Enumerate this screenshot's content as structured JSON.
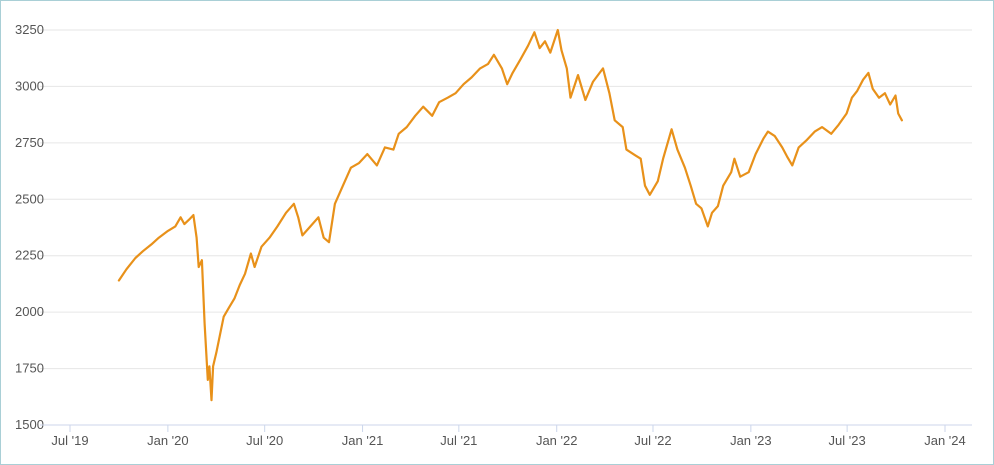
{
  "chart_data": {
    "type": "line",
    "title": "",
    "xlabel": "",
    "ylabel": "",
    "ylim": [
      1500,
      3250
    ],
    "xlim": [
      "2019-07-01",
      "2024-01-01"
    ],
    "y_ticks": [
      "3250",
      "3000",
      "2750",
      "2500",
      "2250",
      "2000",
      "1750",
      "1500"
    ],
    "x_ticks": [
      "Jul '19",
      "Jan '20",
      "Jul '20",
      "Jan '21",
      "Jul '21",
      "Jan '22",
      "Jul '22",
      "Jan '23",
      "Jul '23",
      "Jan '24"
    ],
    "grid": true,
    "legend": "none",
    "colors": {
      "line": "#e8911a",
      "grid": "#e6e6e6",
      "axis": "#ccd6eb",
      "border": "#a9cfd6"
    },
    "series": [
      {
        "x": [
          "2019-10-01",
          "2019-10-15",
          "2019-11-01",
          "2019-11-15",
          "2019-12-01",
          "2019-12-15",
          "2020-01-01",
          "2020-01-15",
          "2020-01-25",
          "2020-02-01",
          "2020-02-10",
          "2020-02-18",
          "2020-02-24",
          "2020-02-28",
          "2020-03-05",
          "2020-03-10",
          "2020-03-16",
          "2020-03-19",
          "2020-03-23",
          "2020-03-26",
          "2020-04-01",
          "2020-04-08",
          "2020-04-15",
          "2020-04-25",
          "2020-05-05",
          "2020-05-15",
          "2020-05-25",
          "2020-06-05",
          "2020-06-12",
          "2020-06-25",
          "2020-07-10",
          "2020-07-25",
          "2020-08-10",
          "2020-08-25",
          "2020-09-02",
          "2020-09-10",
          "2020-09-25",
          "2020-10-10",
          "2020-10-20",
          "2020-10-30",
          "2020-11-10",
          "2020-11-25",
          "2020-12-10",
          "2020-12-25",
          "2021-01-10",
          "2021-01-28",
          "2021-02-12",
          "2021-02-28",
          "2021-03-10",
          "2021-03-25",
          "2021-04-10",
          "2021-04-25",
          "2021-05-12",
          "2021-05-25",
          "2021-06-10",
          "2021-06-25",
          "2021-07-10",
          "2021-07-25",
          "2021-08-10",
          "2021-08-25",
          "2021-09-05",
          "2021-09-20",
          "2021-09-30",
          "2021-10-10",
          "2021-10-25",
          "2021-11-08",
          "2021-11-20",
          "2021-11-30",
          "2021-12-10",
          "2021-12-20",
          "2022-01-03",
          "2022-01-10",
          "2022-01-20",
          "2022-01-27",
          "2022-02-10",
          "2022-02-24",
          "2022-03-10",
          "2022-03-29",
          "2022-04-10",
          "2022-04-20",
          "2022-05-05",
          "2022-05-12",
          "2022-05-25",
          "2022-06-08",
          "2022-06-16",
          "2022-06-25",
          "2022-07-10",
          "2022-07-20",
          "2022-08-05",
          "2022-08-16",
          "2022-08-30",
          "2022-09-10",
          "2022-09-20",
          "2022-09-30",
          "2022-10-12",
          "2022-10-20",
          "2022-10-31",
          "2022-11-10",
          "2022-11-25",
          "2022-12-01",
          "2022-12-12",
          "2022-12-28",
          "2023-01-10",
          "2023-01-25",
          "2023-02-02",
          "2023-02-15",
          "2023-03-01",
          "2023-03-10",
          "2023-03-20",
          "2023-04-01",
          "2023-04-15",
          "2023-05-01",
          "2023-05-15",
          "2023-06-01",
          "2023-06-15",
          "2023-06-30",
          "2023-07-10",
          "2023-07-20",
          "2023-07-31",
          "2023-08-10",
          "2023-08-18",
          "2023-08-30",
          "2023-09-10",
          "2023-09-20",
          "2023-09-30",
          "2023-10-05",
          "2023-10-12"
        ],
        "values": [
          2140,
          2190,
          2240,
          2270,
          2300,
          2330,
          2360,
          2380,
          2420,
          2390,
          2410,
          2430,
          2330,
          2200,
          2230,
          1950,
          1700,
          1760,
          1610,
          1760,
          1820,
          1900,
          1980,
          2020,
          2060,
          2120,
          2170,
          2260,
          2200,
          2290,
          2330,
          2380,
          2440,
          2480,
          2420,
          2340,
          2380,
          2420,
          2330,
          2310,
          2480,
          2560,
          2640,
          2660,
          2700,
          2650,
          2730,
          2720,
          2790,
          2820,
          2870,
          2910,
          2870,
          2930,
          2950,
          2970,
          3010,
          3040,
          3080,
          3100,
          3140,
          3080,
          3010,
          3060,
          3120,
          3180,
          3240,
          3170,
          3200,
          3150,
          3250,
          3160,
          3080,
          2950,
          3050,
          2940,
          3020,
          3080,
          2970,
          2850,
          2820,
          2720,
          2700,
          2680,
          2560,
          2520,
          2580,
          2680,
          2810,
          2720,
          2640,
          2560,
          2480,
          2460,
          2380,
          2440,
          2470,
          2560,
          2620,
          2680,
          2600,
          2620,
          2700,
          2770,
          2800,
          2780,
          2730,
          2690,
          2650,
          2730,
          2760,
          2800,
          2820,
          2790,
          2830,
          2880,
          2950,
          2980,
          3030,
          3060,
          2990,
          2950,
          2970,
          2920,
          2960,
          2880,
          2850
        ]
      }
    ]
  }
}
